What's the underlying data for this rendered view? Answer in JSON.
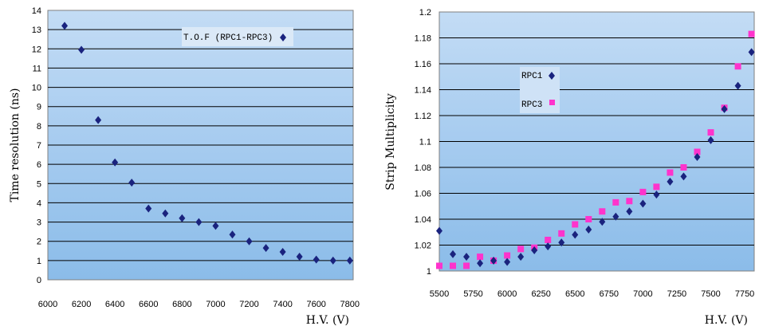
{
  "chart_data": [
    {
      "type": "scatter",
      "title": "",
      "xlabel": "H.V. (V)",
      "ylabel": "Time resolution (ns)",
      "xlim": [
        6000,
        7820
      ],
      "ylim": [
        0,
        14
      ],
      "x_ticks": [
        "6000",
        "6200",
        "6400",
        "6600",
        "6800",
        "7000",
        "7200",
        "7400",
        "7600",
        "7800"
      ],
      "y_ticks": [
        "0",
        "1",
        "2",
        "3",
        "4",
        "5",
        "6",
        "7",
        "8",
        "9",
        "10",
        "11",
        "12",
        "13",
        "14"
      ],
      "grid": "horizontal",
      "legend_position": "top-right",
      "series": [
        {
          "name": "T.O.F (RPC1-RPC3)",
          "color": "#1a237e",
          "marker": "diamond",
          "x": [
            6100,
            6200,
            6300,
            6400,
            6500,
            6600,
            6700,
            6800,
            6900,
            7000,
            7100,
            7200,
            7300,
            7400,
            7500,
            7600,
            7700,
            7800
          ],
          "y": [
            13.2,
            11.95,
            8.3,
            6.1,
            5.05,
            3.7,
            3.45,
            3.2,
            3.0,
            2.8,
            2.35,
            2.0,
            1.65,
            1.45,
            1.2,
            1.05,
            1.0,
            1.0
          ]
        }
      ]
    },
    {
      "type": "scatter",
      "title": "",
      "xlabel": "H.V. (V)",
      "ylabel": "Strip Multiplicity",
      "xlim": [
        5500,
        7820
      ],
      "ylim": [
        1,
        1.2
      ],
      "x_ticks": [
        "5500",
        "5750",
        "6000",
        "6250",
        "6500",
        "6750",
        "7000",
        "7250",
        "7500",
        "7750"
      ],
      "y_ticks": [
        "1",
        "1.02",
        "1.04",
        "1.06",
        "1.08",
        "1.1",
        "1.12",
        "1.14",
        "1.16",
        "1.18",
        "1.2"
      ],
      "grid": "horizontal",
      "legend_position": "top-left",
      "series": [
        {
          "name": "RPC1",
          "color": "#1a237e",
          "marker": "diamond",
          "x": [
            5500,
            5600,
            5700,
            5800,
            5900,
            6000,
            6100,
            6200,
            6300,
            6400,
            6500,
            6600,
            6700,
            6800,
            6900,
            7000,
            7100,
            7200,
            7300,
            7400,
            7500,
            7600,
            7700,
            7800
          ],
          "y": [
            1.031,
            1.013,
            1.011,
            1.006,
            1.008,
            1.007,
            1.011,
            1.016,
            1.019,
            1.022,
            1.028,
            1.032,
            1.038,
            1.042,
            1.046,
            1.052,
            1.059,
            1.069,
            1.073,
            1.088,
            1.101,
            1.125,
            1.143,
            1.169
          ]
        },
        {
          "name": "RPC3",
          "color": "#ff33cc",
          "marker": "square",
          "x": [
            5500,
            5600,
            5700,
            5800,
            5900,
            6000,
            6100,
            6200,
            6300,
            6400,
            6500,
            6600,
            6700,
            6800,
            6900,
            7000,
            7100,
            7200,
            7300,
            7400,
            7500,
            7600,
            7700,
            7800
          ],
          "y": [
            1.004,
            1.004,
            1.004,
            1.011,
            1.008,
            1.012,
            1.017,
            1.018,
            1.024,
            1.029,
            1.036,
            1.04,
            1.046,
            1.053,
            1.054,
            1.061,
            1.065,
            1.076,
            1.08,
            1.092,
            1.107,
            1.126,
            1.158,
            1.183
          ]
        }
      ]
    }
  ]
}
